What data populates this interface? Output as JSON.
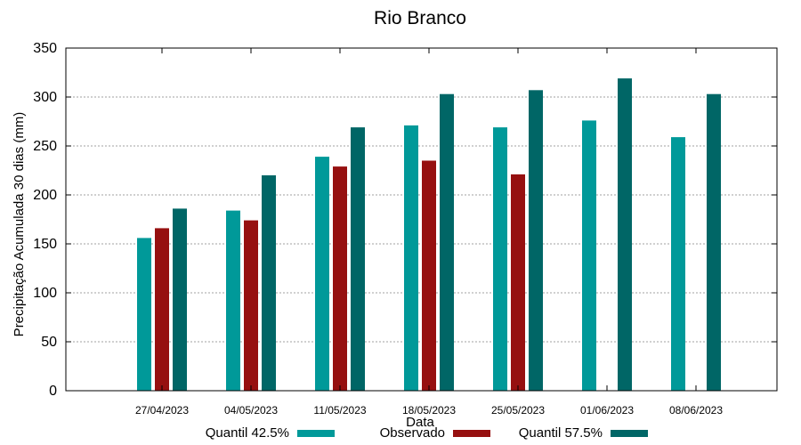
{
  "chart_data": {
    "type": "bar",
    "title": "Rio Branco",
    "xlabel": "Data",
    "ylabel": "Precipitação Acumulada 30 dias (mm)",
    "ylim": [
      0,
      350
    ],
    "yticks": [
      0,
      50,
      100,
      150,
      200,
      250,
      300,
      350
    ],
    "grid": true,
    "legend_position": "bottom",
    "categories": [
      "27/04/2023",
      "04/05/2023",
      "11/05/2023",
      "18/05/2023",
      "25/05/2023",
      "01/06/2023",
      "08/06/2023"
    ],
    "series": [
      {
        "name": "Quantil 42.5%",
        "color": "#009999",
        "values": [
          156,
          184,
          239,
          271,
          269,
          276,
          259
        ]
      },
      {
        "name": "Observado",
        "color": "#961010",
        "values": [
          166,
          174,
          229,
          235,
          221,
          null,
          null
        ]
      },
      {
        "name": "Quantil 57.5%",
        "color": "#006666",
        "values": [
          186,
          220,
          269,
          303,
          307,
          319,
          303
        ]
      }
    ]
  }
}
